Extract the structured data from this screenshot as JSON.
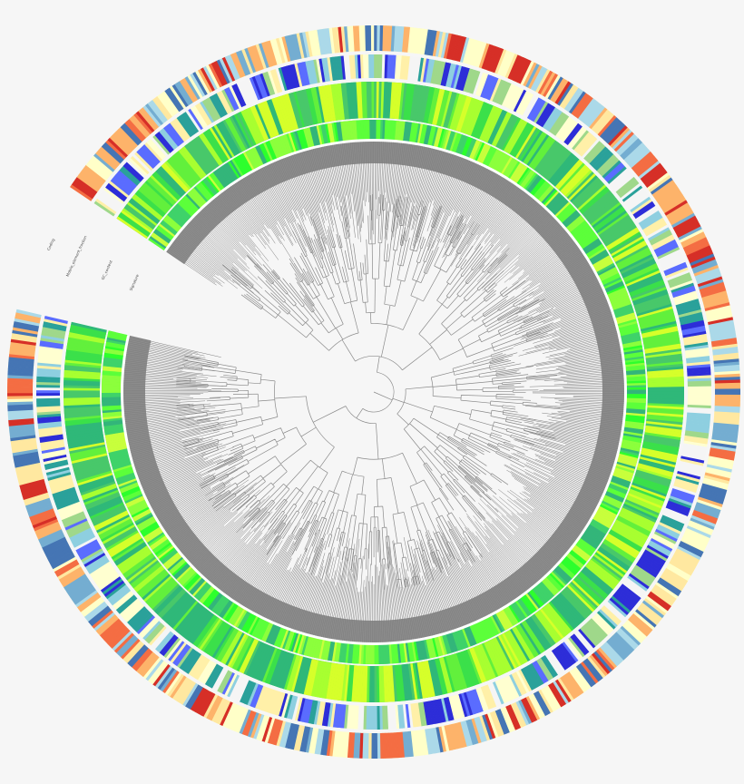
{
  "figure": {
    "type": "circular-phylogenetic-tree",
    "background_color": "#f6f6f6",
    "gap_start_angle_deg": 193,
    "gap_end_angle_deg": 214,
    "tree": {
      "branch_color": "#8a8a8a",
      "leaf_band_color": "#8c8c8c",
      "leaf_count": 900
    },
    "rings": [
      {
        "id": "inner-heatmap",
        "label": "Signature",
        "palette": [
          "#2dff2d",
          "#5cff3a",
          "#8cff3c",
          "#c8ff3c",
          "#3fd26a",
          "#33b57a"
        ]
      },
      {
        "id": "middle-heatmap",
        "label": "GC_content",
        "palette": [
          "#3be04a",
          "#62f03c",
          "#a8ff30",
          "#d6ff2a",
          "#2fb879",
          "#48c86a"
        ]
      },
      {
        "id": "outer-annotation",
        "label": "Mobile_element_fraction",
        "palette": [
          "#f5f5f5",
          "#ffffd0",
          "#fff0a8",
          "#5a6cff",
          "#2d2dd8",
          "#2aa19a",
          "#9fd88a",
          "#8ecfe0"
        ]
      },
      {
        "id": "outermost-annotation",
        "label": "Coding",
        "palette": [
          "#ffffc8",
          "#ffe8a0",
          "#fdb36a",
          "#f46d43",
          "#d62f27",
          "#74add1",
          "#4575b4",
          "#abd9e9"
        ]
      }
    ]
  }
}
